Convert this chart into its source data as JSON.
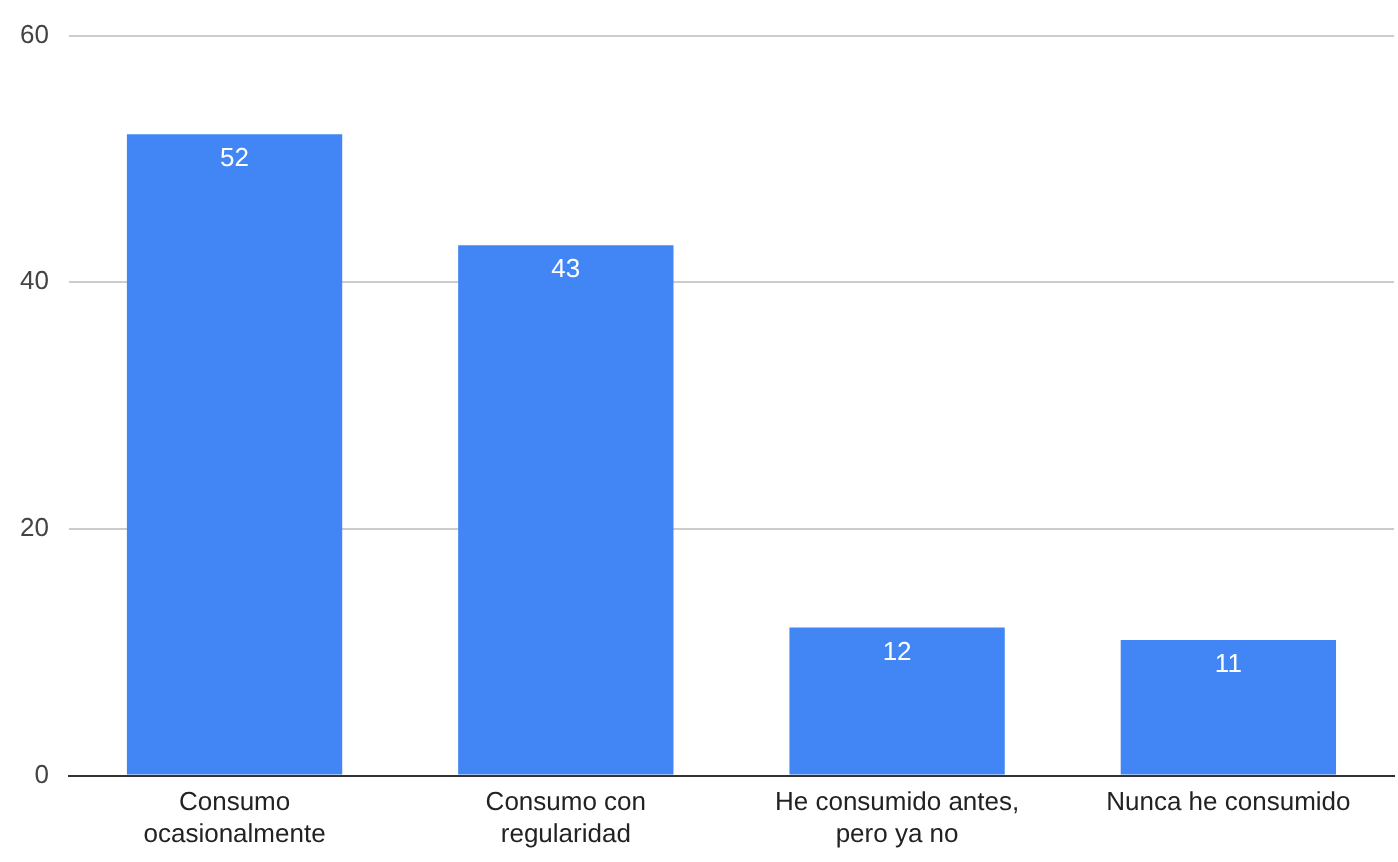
{
  "chart_data": {
    "type": "bar",
    "categories": [
      "Consumo ocasionalmente",
      "Consumo con regularidad",
      "He consumido antes, pero ya no",
      "Nunca he consumido"
    ],
    "values": [
      52,
      43,
      12,
      11
    ],
    "color": "#4285f4",
    "ylim": [
      0,
      60
    ],
    "yticks": [
      0,
      20,
      40,
      60
    ],
    "grid": "y",
    "data_labels": true,
    "legend": false
  }
}
